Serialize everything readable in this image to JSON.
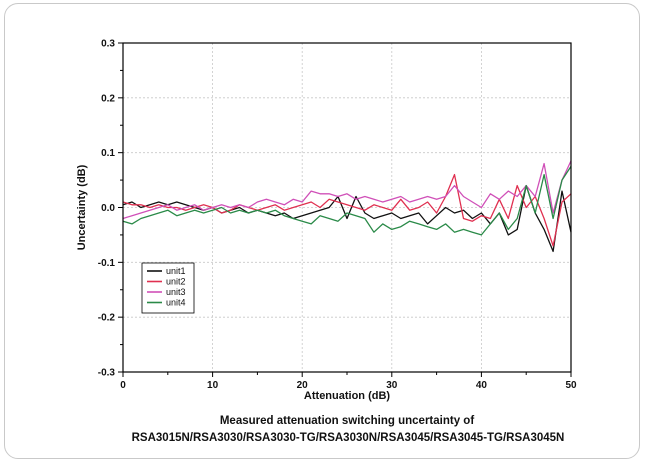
{
  "chart_data": {
    "type": "line",
    "xlabel": "Attenuation (dB)",
    "ylabel": "Uncertainty (dB)",
    "xlim": [
      0,
      50
    ],
    "ylim": [
      -0.3,
      0.3
    ],
    "x_ticks": [
      "0",
      "10",
      "20",
      "30",
      "40",
      "50"
    ],
    "y_ticks": [
      "0.3",
      "0.2",
      "0.1",
      "0.0",
      "-0.1",
      "-0.2",
      "-0.3"
    ],
    "grid": true,
    "legend": "lower-left",
    "caption_lines": [
      "Measured attenuation switching uncertainty of",
      "RSA3015N/RSA3030/RSA3030-TG/RSA3030N/RSA3045/RSA3045-TG/RSA3045N"
    ],
    "x": [
      0,
      1,
      2,
      3,
      4,
      5,
      6,
      7,
      8,
      9,
      10,
      11,
      12,
      13,
      14,
      15,
      16,
      17,
      18,
      19,
      20,
      21,
      22,
      23,
      24,
      25,
      26,
      27,
      28,
      29,
      30,
      31,
      32,
      33,
      34,
      35,
      36,
      37,
      38,
      39,
      40,
      41,
      42,
      43,
      44,
      45,
      46,
      47,
      48,
      49,
      50
    ],
    "series": [
      {
        "name": "unit1",
        "color": "#111111",
        "values": [
          0.005,
          0.01,
          0.0,
          0.005,
          0.01,
          0.005,
          0.01,
          0.005,
          0.0,
          -0.005,
          0.0,
          -0.01,
          -0.005,
          0.0,
          -0.01,
          -0.005,
          -0.01,
          -0.015,
          -0.01,
          -0.02,
          -0.015,
          -0.01,
          -0.005,
          0.0,
          0.02,
          -0.02,
          0.02,
          -0.01,
          -0.02,
          -0.015,
          -0.01,
          -0.02,
          -0.015,
          -0.01,
          -0.03,
          -0.015,
          0.0,
          -0.01,
          -0.005,
          -0.02,
          -0.01,
          -0.03,
          -0.01,
          -0.05,
          -0.04,
          0.04,
          -0.01,
          -0.04,
          -0.08,
          0.03,
          -0.045
        ]
      },
      {
        "name": "unit2",
        "color": "#e03050",
        "values": [
          0.01,
          0.005,
          0.005,
          0.0,
          0.005,
          0.0,
          0.0,
          -0.005,
          0.0,
          0.005,
          0.0,
          -0.01,
          -0.005,
          0.005,
          0.0,
          -0.005,
          0.0,
          0.005,
          -0.005,
          0.0,
          0.005,
          0.01,
          0.0,
          0.015,
          0.01,
          0.005,
          0.0,
          -0.005,
          0.005,
          0.0,
          -0.005,
          0.015,
          -0.005,
          0.0,
          0.01,
          -0.01,
          0.02,
          0.06,
          -0.02,
          -0.025,
          -0.015,
          -0.02,
          0.015,
          -0.02,
          0.04,
          0.0,
          0.02,
          -0.02,
          -0.07,
          0.01,
          0.025
        ]
      },
      {
        "name": "unit3",
        "color": "#d050b8",
        "values": [
          -0.02,
          -0.015,
          -0.01,
          -0.005,
          0.0,
          0.005,
          -0.005,
          0.0,
          0.005,
          -0.005,
          0.0,
          0.005,
          0.0,
          0.005,
          0.0,
          0.01,
          0.015,
          0.01,
          0.005,
          0.015,
          0.01,
          0.03,
          0.025,
          0.025,
          0.02,
          0.025,
          0.015,
          0.02,
          0.015,
          0.01,
          0.015,
          0.02,
          0.01,
          0.015,
          0.02,
          0.015,
          0.02,
          0.04,
          0.02,
          0.01,
          0.0,
          0.025,
          0.015,
          0.03,
          0.02,
          0.04,
          0.02,
          0.08,
          -0.01,
          0.05,
          0.085
        ]
      },
      {
        "name": "unit4",
        "color": "#2a8a48",
        "values": [
          -0.025,
          -0.03,
          -0.02,
          -0.015,
          -0.01,
          -0.005,
          -0.015,
          -0.01,
          -0.005,
          -0.01,
          -0.005,
          0.0,
          -0.01,
          -0.005,
          -0.01,
          -0.005,
          -0.01,
          -0.005,
          -0.015,
          -0.02,
          -0.025,
          -0.03,
          -0.015,
          -0.02,
          -0.025,
          -0.01,
          -0.015,
          -0.02,
          -0.045,
          -0.03,
          -0.04,
          -0.035,
          -0.025,
          -0.03,
          -0.035,
          -0.04,
          -0.03,
          -0.045,
          -0.04,
          -0.045,
          -0.05,
          -0.03,
          -0.01,
          -0.04,
          -0.02,
          0.04,
          -0.01,
          0.06,
          -0.02,
          0.05,
          0.075
        ]
      }
    ]
  }
}
